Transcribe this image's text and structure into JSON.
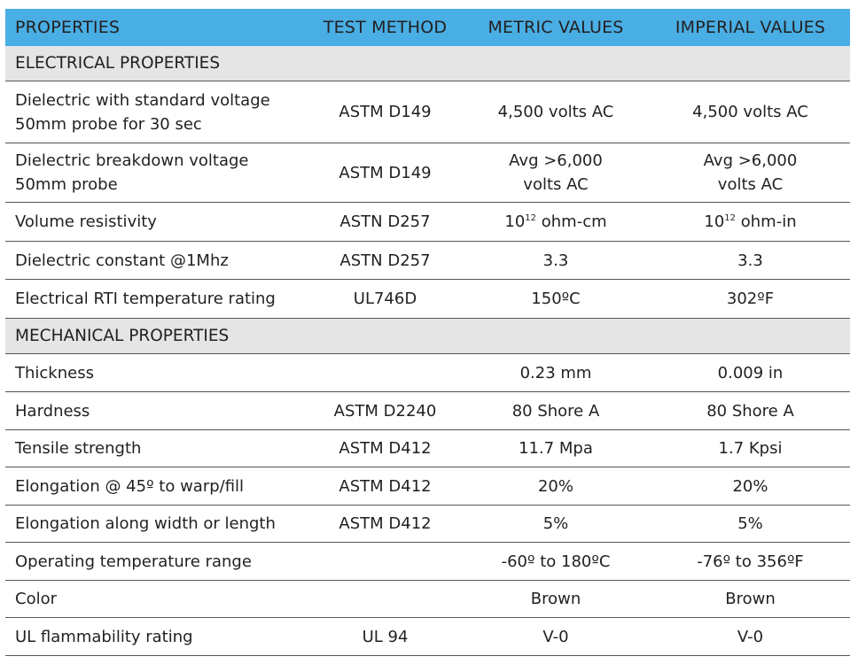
{
  "header": {
    "properties": "PROPERTIES",
    "test_method": "TEST METHOD",
    "metric": "METRIC VALUES",
    "imperial": "IMPERIAL VALUES"
  },
  "electrical": {
    "title": "ELECTRICAL PROPERTIES",
    "rows": [
      {
        "property": "Dielectric with standard voltage\n50mm probe for 30 sec",
        "method": "ASTM D149",
        "metric": "4,500 volts AC",
        "imperial": "4,500 volts AC"
      },
      {
        "property": "Dielectric breakdown voltage\n50mm probe",
        "method": "ASTM D149",
        "metric": "Avg >6,000\nvolts AC",
        "imperial": "Avg >6,000\nvolts AC"
      },
      {
        "property": "Volume resistivity",
        "method": "ASTN D257",
        "metric_base": "10",
        "metric_exp": "12",
        "metric_unit": " ohm-cm",
        "imperial_base": "10",
        "imperial_exp": "12",
        "imperial_unit": " ohm-in"
      },
      {
        "property": "Dielectric constant @1Mhz",
        "method": "ASTN D257",
        "metric": "3.3",
        "imperial": "3.3"
      },
      {
        "property": "Electrical RTI temperature rating",
        "method": "UL746D",
        "metric": "150ºC",
        "imperial": "302ºF"
      }
    ]
  },
  "mechanical": {
    "title": "MECHANICAL PROPERTIES",
    "rows": [
      {
        "property": "Thickness",
        "method": "",
        "metric": "0.23 mm",
        "imperial": "0.009 in"
      },
      {
        "property": "Hardness",
        "method": "ASTM D2240",
        "metric": "80 Shore A",
        "imperial": "80 Shore A"
      },
      {
        "property": "Tensile strength",
        "method": "ASTM D412",
        "metric": "11.7 Mpa",
        "imperial": "1.7 Kpsi"
      },
      {
        "property": "Elongation @ 45º to warp/fill",
        "method": "ASTM D412",
        "metric": "20%",
        "imperial": "20%"
      },
      {
        "property": "Elongation along width or length",
        "method": "ASTM D412",
        "metric": "5%",
        "imperial": "5%"
      },
      {
        "property": "Operating temperature range",
        "method": "",
        "metric": "-60º to 180ºC",
        "imperial": "-76º to 356ºF"
      },
      {
        "property": "Color",
        "method": "",
        "metric": "Brown",
        "imperial": "Brown"
      },
      {
        "property": "UL flammability rating",
        "method": "UL 94",
        "metric": "V-0",
        "imperial": "V-0"
      }
    ]
  },
  "colors": {
    "header_bg": "#49aee3",
    "section_bg": "#e5e5e5",
    "rule": "#555555"
  }
}
